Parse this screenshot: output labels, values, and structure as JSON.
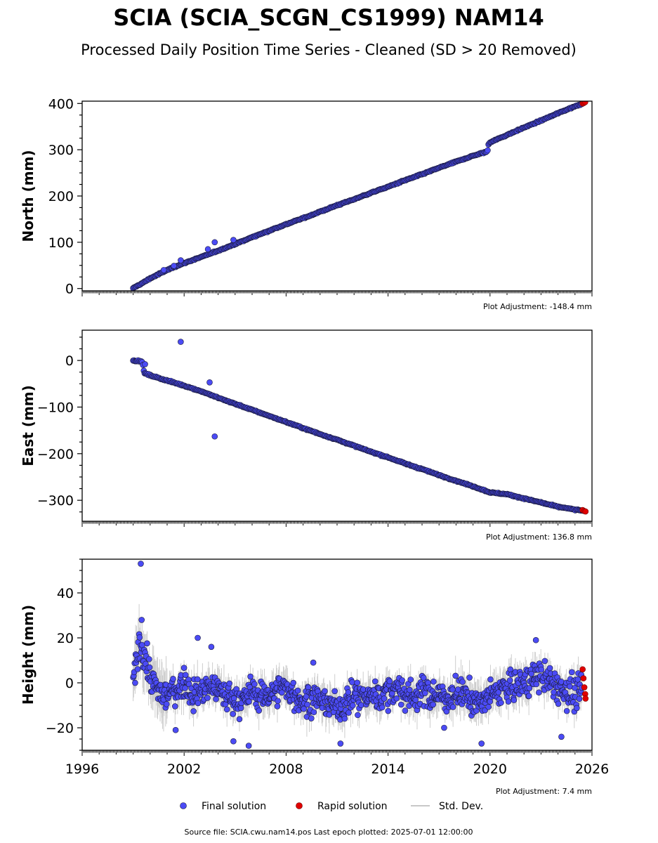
{
  "title": "SCIA (SCIA_SCGN_CS1999) NAM14",
  "subtitle": "Processed Daily Position Time Series - Cleaned (SD > 20 Removed)",
  "footer": "Source file: SCIA.cwu.nam14.pos  Last epoch plotted: 2025-07-01 12:00:00",
  "colors": {
    "final": "#4b4bf5",
    "rapid": "#e00000",
    "std": "#c8c8c8",
    "edge": "#1a1a3a"
  },
  "legend": {
    "placement": "bottom-center",
    "items": [
      {
        "label": "Final solution",
        "marker": "dot",
        "color": "#4b4bf5"
      },
      {
        "label": "Rapid solution",
        "marker": "dot",
        "color": "#e00000"
      },
      {
        "label": "Std. Dev.",
        "marker": "line",
        "color": "#c8c8c8"
      }
    ]
  },
  "chart_data": [
    {
      "type": "scatter",
      "ylabel": "North (mm)",
      "adjustment": "Plot Adjustment: -148.4 mm",
      "xlim": [
        1996,
        2026
      ],
      "ylim": [
        -5,
        405
      ],
      "yticks": [
        0,
        100,
        200,
        300,
        400
      ],
      "xticks_labeled": false,
      "final_series": {
        "x": [
          1999.0,
          1999.15,
          1999.3,
          1999.6,
          2000.0,
          2000.5,
          2001.0,
          2001.5,
          2002.0,
          2003.0,
          2004.0,
          2005.0,
          2006.0,
          2007.0,
          2008.0,
          2009.0,
          2010.0,
          2011.0,
          2012.0,
          2013.0,
          2014.0,
          2015.0,
          2016.0,
          2017.0,
          2018.0,
          2019.0,
          2019.85,
          2019.9,
          2020.0,
          2021.0,
          2022.0,
          2023.0,
          2024.0,
          2025.0,
          2025.45
        ],
        "y": [
          0,
          4,
          7,
          13,
          22,
          31,
          40,
          48,
          55,
          68,
          82,
          96,
          111,
          125,
          139,
          152,
          166,
          180,
          193,
          207,
          220,
          234,
          247,
          261,
          274,
          287,
          296,
          311,
          316,
          332,
          348,
          363,
          379,
          394,
          400
        ],
        "outliers": [
          {
            "x": 2000.8,
            "y": 40
          },
          {
            "x": 2001.4,
            "y": 49
          },
          {
            "x": 2001.8,
            "y": 61
          },
          {
            "x": 2003.4,
            "y": 85
          },
          {
            "x": 2003.8,
            "y": 100
          },
          {
            "x": 2004.9,
            "y": 105
          }
        ]
      },
      "rapid_series": {
        "x": [
          2025.45,
          2025.52,
          2025.6
        ],
        "y": [
          400,
          401,
          403
        ]
      }
    },
    {
      "type": "scatter",
      "ylabel": "East (mm)",
      "adjustment": "Plot Adjustment: 136.8 mm",
      "xlim": [
        1996,
        2026
      ],
      "ylim": [
        -345,
        65
      ],
      "yticks": [
        -300,
        -200,
        -100,
        0
      ],
      "xticks_labeled": false,
      "final_series": {
        "x": [
          1999.0,
          1999.3,
          1999.55,
          1999.65,
          2000.0,
          2001.0,
          2002.0,
          2003.0,
          2004.0,
          2005.0,
          2006.0,
          2007.0,
          2008.0,
          2009.0,
          2010.0,
          2011.0,
          2012.0,
          2013.0,
          2014.0,
          2015.0,
          2016.0,
          2017.0,
          2018.0,
          2019.0,
          2020.0,
          2021.0,
          2022.0,
          2023.0,
          2024.0,
          2025.0,
          2025.45
        ],
        "y": [
          0,
          -1,
          -3,
          -27,
          -32,
          -43,
          -54,
          -66,
          -80,
          -93,
          -106,
          -119,
          -132,
          -145,
          -158,
          -170,
          -183,
          -196,
          -208,
          -221,
          -233,
          -246,
          -258,
          -270,
          -283,
          -287,
          -296,
          -305,
          -314,
          -320,
          -322
        ],
        "outliers": [
          {
            "x": 2001.8,
            "y": 40
          },
          {
            "x": 2003.5,
            "y": -47
          },
          {
            "x": 2003.8,
            "y": -163
          },
          {
            "x": 1999.7,
            "y": -8
          }
        ]
      },
      "rapid_series": {
        "x": [
          2025.45,
          2025.55,
          2025.62
        ],
        "y": [
          -321,
          -323,
          -324
        ]
      }
    },
    {
      "type": "scatter",
      "ylabel": "Height (mm)",
      "adjustment": "Plot Adjustment: 7.4 mm",
      "xlim": [
        1996,
        2026
      ],
      "ylim": [
        -30,
        55
      ],
      "yticks": [
        -20,
        0,
        20,
        40
      ],
      "xticks": [
        1996,
        2002,
        2008,
        2014,
        2020,
        2026
      ],
      "xticks_labeled": true,
      "final_series": {
        "x": [
          1999.0,
          1999.2,
          1999.4,
          1999.6,
          1999.8,
          2000.0,
          2000.5,
          2001.0,
          2001.5,
          2002.0,
          2002.5,
          2003.0,
          2003.5,
          2004.0,
          2004.5,
          2005.0,
          2005.5,
          2006.0,
          2006.5,
          2007.0,
          2007.5,
          2008.0,
          2008.5,
          2009.0,
          2009.5,
          2010.0,
          2010.5,
          2011.0,
          2011.5,
          2012.0,
          2012.5,
          2013.0,
          2013.5,
          2014.0,
          2014.5,
          2015.0,
          2015.5,
          2016.0,
          2016.5,
          2017.0,
          2017.5,
          2018.0,
          2018.5,
          2019.0,
          2019.5,
          2020.0,
          2020.5,
          2021.0,
          2021.5,
          2022.0,
          2022.5,
          2023.0,
          2023.5,
          2024.0,
          2024.5,
          2025.0,
          2025.4
        ],
        "y": [
          -2,
          10,
          18,
          14,
          8,
          2,
          -4,
          -6,
          -3,
          0,
          -5,
          -4,
          -2,
          -3,
          -6,
          -7,
          -8,
          -4,
          -6,
          -5,
          -3,
          -2,
          -6,
          -8,
          -7,
          -8,
          -9,
          -11,
          -9,
          -6,
          -7,
          -5,
          -6,
          -4,
          -3,
          -5,
          -6,
          -4,
          -5,
          -6,
          -7,
          -5,
          -4,
          -8,
          -9,
          -6,
          -3,
          -2,
          -1,
          0,
          2,
          3,
          1,
          -2,
          -4,
          -5,
          -3
        ],
        "outliers": [
          {
            "x": 1999.45,
            "y": 53
          },
          {
            "x": 1999.5,
            "y": 28
          },
          {
            "x": 2001.5,
            "y": -21
          },
          {
            "x": 2003.6,
            "y": 16
          },
          {
            "x": 2004.9,
            "y": -26
          },
          {
            "x": 2005.8,
            "y": -28
          },
          {
            "x": 2002.8,
            "y": 20
          },
          {
            "x": 2011.2,
            "y": -27
          },
          {
            "x": 2019.5,
            "y": -27
          },
          {
            "x": 2022.7,
            "y": 19
          },
          {
            "x": 2024.2,
            "y": -24
          },
          {
            "x": 2009.6,
            "y": 9
          },
          {
            "x": 2017.3,
            "y": -20
          }
        ]
      },
      "rapid_series": {
        "x": [
          2025.45,
          2025.5,
          2025.55,
          2025.6,
          2025.62
        ],
        "y": [
          6,
          2,
          -2,
          -5,
          -7
        ]
      }
    }
  ]
}
